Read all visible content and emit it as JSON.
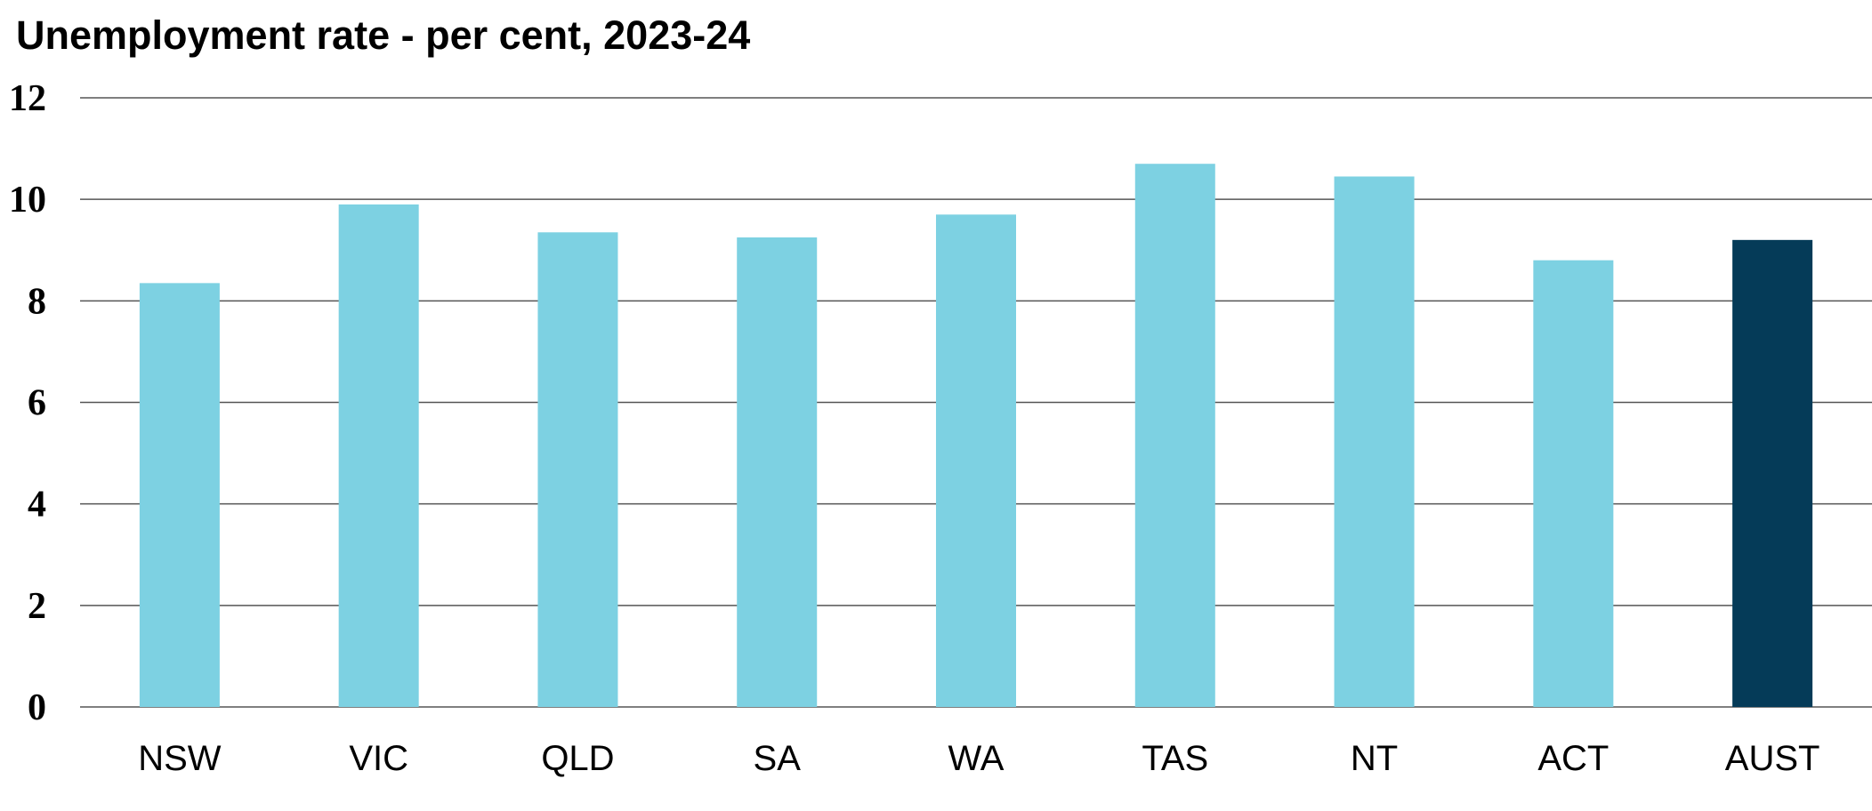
{
  "chart_data": {
    "type": "bar",
    "title": "Unemployment rate - per cent, 2023-24",
    "xlabel": "",
    "ylabel": "",
    "categories": [
      "NSW",
      "VIC",
      "QLD",
      "SA",
      "WA",
      "TAS",
      "NT",
      "ACT",
      "AUST"
    ],
    "values": [
      8.35,
      9.9,
      9.35,
      9.25,
      9.7,
      10.7,
      10.45,
      8.8,
      9.2
    ],
    "highlight": [
      false,
      false,
      false,
      false,
      false,
      false,
      false,
      false,
      true
    ],
    "ylim": [
      0,
      12
    ],
    "yticks": [
      "0",
      "2",
      "4",
      "6",
      "8",
      "10",
      "12"
    ],
    "grid": true,
    "legend": "none",
    "colors": {
      "bar": "#7dd1e2",
      "highlight": "#053b58",
      "grid": "#555555"
    }
  }
}
